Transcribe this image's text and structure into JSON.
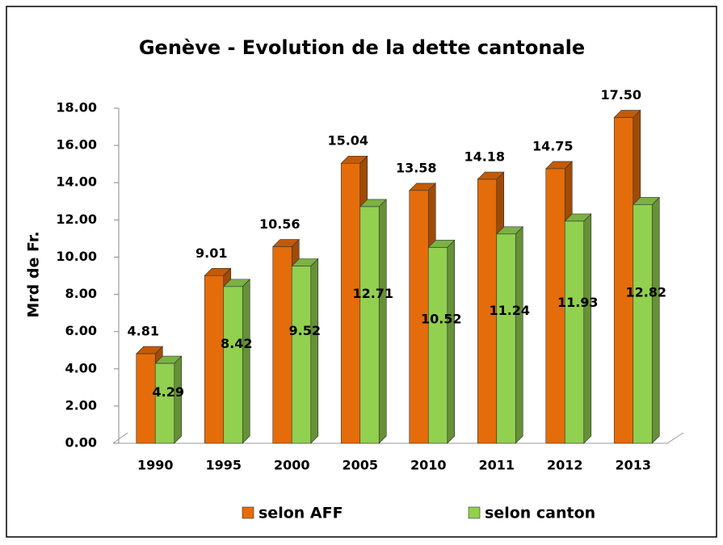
{
  "chart_data": {
    "type": "bar3d",
    "title": "Genève - Evolution de la dette cantonale",
    "y_label": "Mrd de Fr.",
    "categories": [
      "1990",
      "1995",
      "2000",
      "2005",
      "2010",
      "2011",
      "2012",
      "2013"
    ],
    "series": [
      {
        "name": "selon AFF",
        "color": "#e46c0a",
        "values": [
          4.81,
          9.01,
          10.56,
          15.04,
          13.58,
          14.18,
          14.75,
          17.5
        ],
        "value_labels": [
          "4.81",
          "9.01",
          "10.56",
          "15.04",
          "13.58",
          "14.18",
          "14.75",
          "17.50"
        ]
      },
      {
        "name": "selon canton",
        "color": "#92d050",
        "values": [
          4.29,
          8.42,
          9.52,
          12.71,
          10.52,
          11.24,
          11.93,
          12.82
        ],
        "value_labels": [
          "4.29",
          "8.42",
          "9.52",
          "12.71",
          "10.52",
          "11.24",
          "11.93",
          "12.82"
        ]
      }
    ],
    "ylim": [
      0,
      18
    ],
    "yticks": [
      {
        "value": 0,
        "label": "0.00"
      },
      {
        "value": 2,
        "label": "2.00"
      },
      {
        "value": 4,
        "label": "4.00"
      },
      {
        "value": 6,
        "label": "6.00"
      },
      {
        "value": 8,
        "label": "8.00"
      },
      {
        "value": 10,
        "label": "10.00"
      },
      {
        "value": 12,
        "label": "12.00"
      },
      {
        "value": 14,
        "label": "14.00"
      },
      {
        "value": 16,
        "label": "16.00"
      },
      {
        "value": 18,
        "label": "18.00"
      }
    ],
    "grid": false,
    "legend": "bottom"
  }
}
